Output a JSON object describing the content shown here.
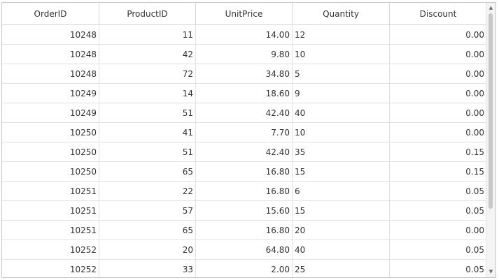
{
  "grid": {
    "columns": [
      {
        "label": "OrderID",
        "align": "num"
      },
      {
        "label": "ProductID",
        "align": "num"
      },
      {
        "label": "UnitPrice",
        "align": "num"
      },
      {
        "label": "Quantity",
        "align": "txt"
      },
      {
        "label": "Discount",
        "align": "num"
      }
    ],
    "rows": [
      [
        "10248",
        "11",
        "14.00",
        "12",
        "0.00"
      ],
      [
        "10248",
        "42",
        "9.80",
        "10",
        "0.00"
      ],
      [
        "10248",
        "72",
        "34.80",
        "5",
        "0.00"
      ],
      [
        "10249",
        "14",
        "18.60",
        "9",
        "0.00"
      ],
      [
        "10249",
        "51",
        "42.40",
        "40",
        "0.00"
      ],
      [
        "10250",
        "41",
        "7.70",
        "10",
        "0.00"
      ],
      [
        "10250",
        "51",
        "42.40",
        "35",
        "0.15"
      ],
      [
        "10250",
        "65",
        "16.80",
        "15",
        "0.15"
      ],
      [
        "10251",
        "22",
        "16.80",
        "6",
        "0.05"
      ],
      [
        "10251",
        "57",
        "15.60",
        "15",
        "0.05"
      ],
      [
        "10251",
        "65",
        "16.80",
        "20",
        "0.00"
      ],
      [
        "10252",
        "20",
        "64.80",
        "40",
        "0.05"
      ],
      [
        "10252",
        "33",
        "2.00",
        "25",
        "0.05"
      ]
    ]
  },
  "scrollbar": {
    "up_icon": "caret-up-icon",
    "down_icon": "caret-down-icon",
    "up_glyph": "▲",
    "down_glyph": "▼",
    "thumb_color": "#c8c8c8"
  },
  "colors": {
    "border": "#c7c7c7",
    "gridline": "#e1e1e1",
    "text": "#333333"
  }
}
